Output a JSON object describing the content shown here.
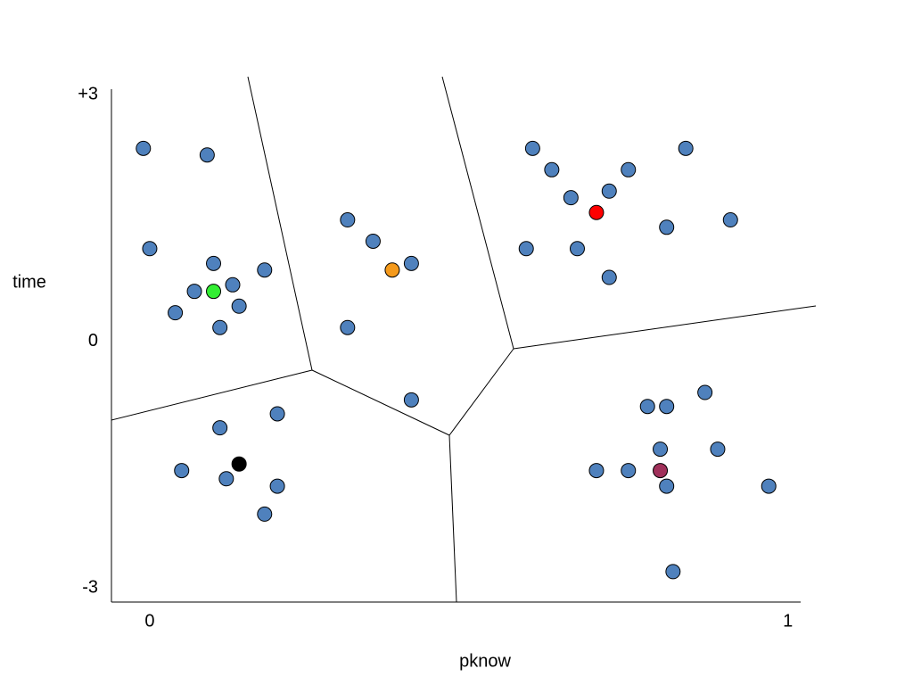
{
  "chart_data": {
    "type": "scatter",
    "x_label": "pknow",
    "y_label": "time",
    "xlim": [
      -0.06,
      1.02
    ],
    "ylim": [
      -3.17,
      3.07
    ],
    "xticks": [
      0,
      1
    ],
    "yticks": [
      {
        "value": 3,
        "label": "+3"
      },
      0,
      -3
    ],
    "series": [
      {
        "color": "#4f81bd",
        "x": [
          -0.01,
          0.09,
          0.0,
          0.1,
          0.18,
          0.07,
          0.13,
          0.04,
          0.14,
          0.11,
          0.31,
          0.35,
          0.41,
          0.31,
          0.41,
          0.6,
          0.63,
          0.66,
          0.72,
          0.75,
          0.84,
          0.59,
          0.67,
          0.81,
          0.91,
          0.72,
          0.2,
          0.11,
          0.05,
          0.12,
          0.2,
          0.18,
          0.87,
          0.78,
          0.81,
          0.8,
          0.89,
          0.7,
          0.75,
          0.81,
          0.97,
          0.82
        ],
        "values": [
          2.35,
          2.27,
          1.13,
          0.95,
          0.87,
          0.61,
          0.69,
          0.35,
          0.43,
          0.17,
          1.48,
          1.22,
          0.95,
          0.17,
          -0.71,
          2.35,
          2.09,
          1.75,
          1.83,
          2.09,
          2.35,
          1.13,
          1.13,
          1.39,
          1.48,
          0.78,
          -0.88,
          -1.05,
          -1.57,
          -1.67,
          -1.76,
          -2.1,
          -0.62,
          -0.79,
          -0.79,
          -1.31,
          -1.31,
          -1.57,
          -1.57,
          -1.76,
          -1.76,
          -2.8
        ]
      },
      {
        "color": "#33ee33",
        "x": [
          0.1
        ],
        "values": [
          0.61
        ]
      },
      {
        "color": "#f59a1c",
        "x": [
          0.38
        ],
        "values": [
          0.87
        ]
      },
      {
        "color": "#ff0000",
        "x": [
          0.7
        ],
        "values": [
          1.57
        ]
      },
      {
        "color": "#000000",
        "x": [
          0.14
        ],
        "values": [
          -1.49
        ]
      },
      {
        "color": "#a0305a",
        "x": [
          0.8
        ],
        "values": [
          -1.57
        ]
      }
    ]
  }
}
